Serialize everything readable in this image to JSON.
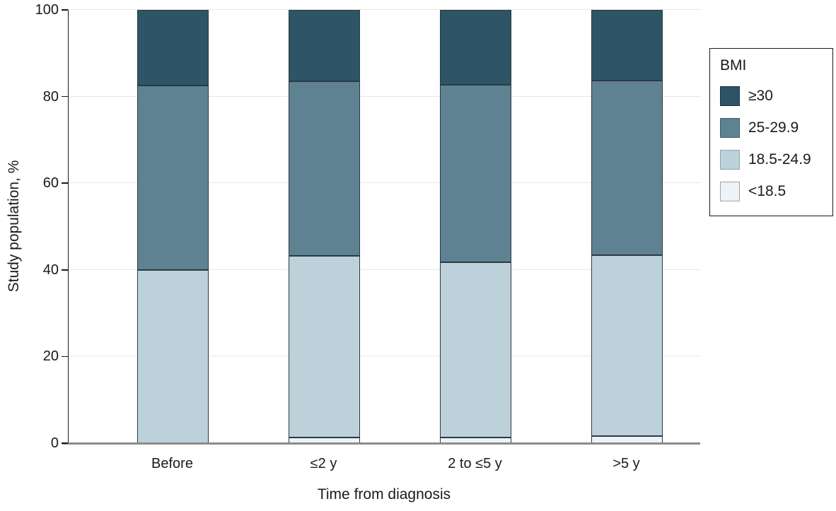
{
  "figure": {
    "y_axis": {
      "title": "Study population, %",
      "tick_labels": [
        "0",
        "20",
        "40",
        "60",
        "80",
        "100"
      ]
    },
    "x_axis": {
      "title": "Time from diagnosis",
      "category_labels": [
        "Before",
        "≤2 y",
        "2 to ≤5 y",
        ">5 y"
      ]
    },
    "legend": {
      "title": "BMI",
      "items": [
        {
          "label": "≥30",
          "color": "#2e5566",
          "border": "#17333f"
        },
        {
          "label": "25-29.9",
          "color": "#5e8292",
          "border": "#3f5d6b"
        },
        {
          "label": "18.5-24.9",
          "color": "#bdd1da",
          "border": "#8fa2ab"
        },
        {
          "label": "<18.5",
          "color": "#edf3f6",
          "border": "#9aa8ae"
        }
      ]
    },
    "colors": {
      "axis_line": "#1a1a1a",
      "baseline": "#8c8c8c",
      "gridline": "#e6e6e6",
      "segment_outline": "#2b3a42",
      "text": "#1a1a1a"
    }
  },
  "chart_data": {
    "type": "bar",
    "stacked": true,
    "orientation": "vertical",
    "title": "",
    "xlabel": "Time from diagnosis",
    "ylabel": "Study population, %",
    "ylim": [
      0,
      100
    ],
    "yticks": [
      0,
      20,
      40,
      60,
      80,
      100
    ],
    "grid": true,
    "legend_position": "top-right",
    "categories": [
      "Before",
      "≤2 y",
      "2 to ≤5 y",
      ">5 y"
    ],
    "series": [
      {
        "name": "<18.5",
        "color": "#edf3f6",
        "values": [
          0.0,
          1.3,
          1.3,
          1.6
        ]
      },
      {
        "name": "18.5-24.9",
        "color": "#bdd1da",
        "values": [
          40.0,
          42.0,
          40.4,
          41.8
        ]
      },
      {
        "name": "25-29.9",
        "color": "#5e8292",
        "values": [
          42.5,
          40.3,
          41.0,
          40.3
        ]
      },
      {
        "name": "≥30",
        "color": "#2e5566",
        "values": [
          17.5,
          16.4,
          17.3,
          16.3
        ]
      }
    ],
    "segment_tops_pct": {
      "note_units": "cumulative % where each lighter-to-darker boundary sits",
      "Before": [
        0.0,
        40.0,
        82.5,
        100
      ],
      "≤2 y": [
        1.3,
        43.3,
        83.6,
        100
      ],
      "2 to ≤5 y": [
        1.3,
        41.7,
        82.7,
        100
      ],
      ">5 y": [
        1.6,
        43.4,
        83.7,
        100
      ]
    }
  }
}
